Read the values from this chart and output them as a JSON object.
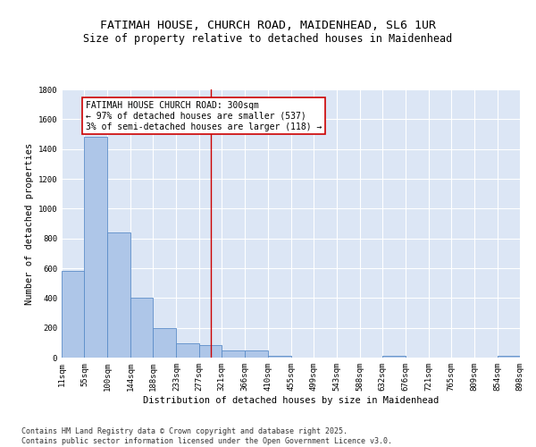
{
  "title": "FATIMAH HOUSE, CHURCH ROAD, MAIDENHEAD, SL6 1UR",
  "subtitle": "Size of property relative to detached houses in Maidenhead",
  "xlabel": "Distribution of detached houses by size in Maidenhead",
  "ylabel": "Number of detached properties",
  "bar_edges": [
    11,
    55,
    100,
    144,
    188,
    233,
    277,
    321,
    366,
    410,
    455,
    499,
    543,
    588,
    632,
    676,
    721,
    765,
    809,
    854,
    898
  ],
  "bar_heights": [
    580,
    1480,
    840,
    400,
    200,
    95,
    85,
    50,
    50,
    10,
    0,
    0,
    0,
    0,
    10,
    0,
    0,
    0,
    0,
    10
  ],
  "bar_color": "#aec6e8",
  "bar_edge_color": "#5b8dc8",
  "background_color": "#dce6f5",
  "grid_color": "#ffffff",
  "ref_line_x": 300,
  "ref_line_color": "#cc0000",
  "annotation_text": "FATIMAH HOUSE CHURCH ROAD: 300sqm\n← 97% of detached houses are smaller (537)\n3% of semi-detached houses are larger (118) →",
  "annotation_box_color": "#cc0000",
  "ylim": [
    0,
    1800
  ],
  "yticks": [
    0,
    200,
    400,
    600,
    800,
    1000,
    1200,
    1400,
    1600,
    1800
  ],
  "tick_labels": [
    "11sqm",
    "55sqm",
    "100sqm",
    "144sqm",
    "188sqm",
    "233sqm",
    "277sqm",
    "321sqm",
    "366sqm",
    "410sqm",
    "455sqm",
    "499sqm",
    "543sqm",
    "588sqm",
    "632sqm",
    "676sqm",
    "721sqm",
    "765sqm",
    "809sqm",
    "854sqm",
    "898sqm"
  ],
  "footer": "Contains HM Land Registry data © Crown copyright and database right 2025.\nContains public sector information licensed under the Open Government Licence v3.0.",
  "title_fontsize": 9.5,
  "subtitle_fontsize": 8.5,
  "axis_label_fontsize": 7.5,
  "tick_fontsize": 6.5,
  "annotation_fontsize": 7,
  "footer_fontsize": 6
}
